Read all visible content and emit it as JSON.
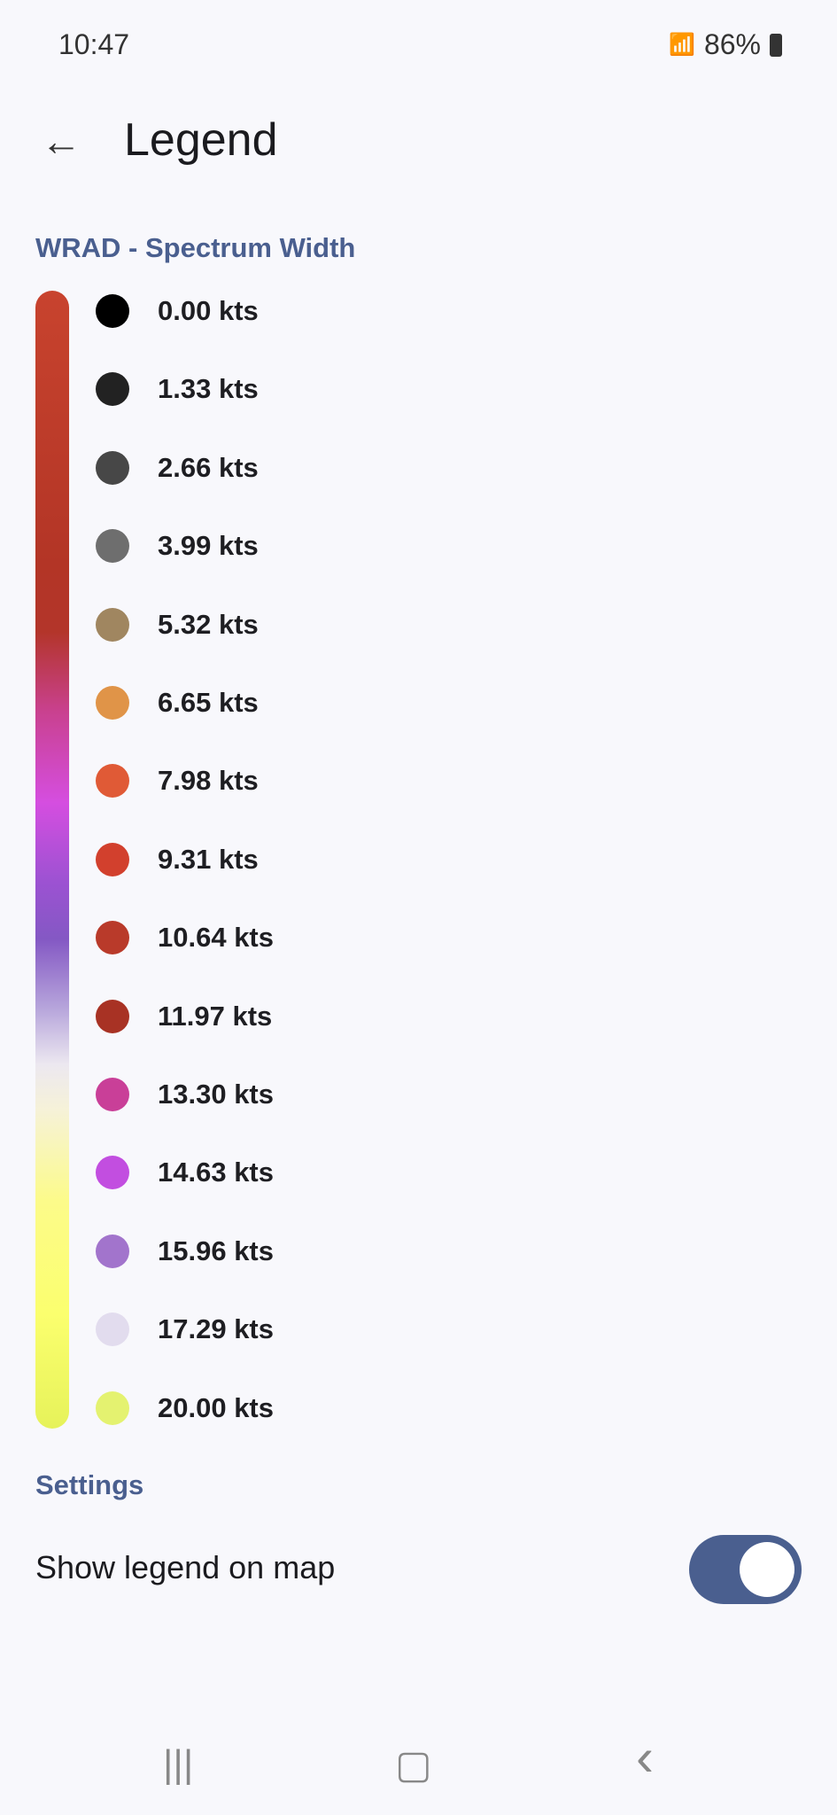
{
  "status_bar": {
    "time": "10:47",
    "battery": "86%",
    "icons": [
      "battery-saver-icon",
      "mute-icon",
      "wifi-icon",
      "signal-icon",
      "battery-icon"
    ]
  },
  "header": {
    "title": "Legend",
    "back_icon": "arrow-left-icon"
  },
  "legend": {
    "title": "WRAD - Spectrum Width",
    "items": [
      {
        "label": "0.00 kts",
        "color": "#000000"
      },
      {
        "label": "1.33 kts",
        "color": "#222222"
      },
      {
        "label": "2.66 kts",
        "color": "#474747"
      },
      {
        "label": "3.99 kts",
        "color": "#6e6e6e"
      },
      {
        "label": "5.32 kts",
        "color": "#a08660"
      },
      {
        "label": "6.65 kts",
        "color": "#e09448"
      },
      {
        "label": "7.98 kts",
        "color": "#e05a36"
      },
      {
        "label": "9.31 kts",
        "color": "#d2402d"
      },
      {
        "label": "10.64 kts",
        "color": "#b93a2a"
      },
      {
        "label": "11.97 kts",
        "color": "#a83224"
      },
      {
        "label": "13.30 kts",
        "color": "#c93f98"
      },
      {
        "label": "14.63 kts",
        "color": "#c24ee0"
      },
      {
        "label": "15.96 kts",
        "color": "#a274cc"
      },
      {
        "label": "17.29 kts",
        "color": "#e2dcee"
      },
      {
        "label": "20.00 kts",
        "color": "#e4f270"
      }
    ]
  },
  "settings": {
    "title": "Settings",
    "show_legend_label": "Show legend on map",
    "show_legend_on": true
  },
  "nav": {
    "recents": "|||",
    "home": "▢",
    "back": "‹"
  },
  "accent": "#4a5f8f"
}
